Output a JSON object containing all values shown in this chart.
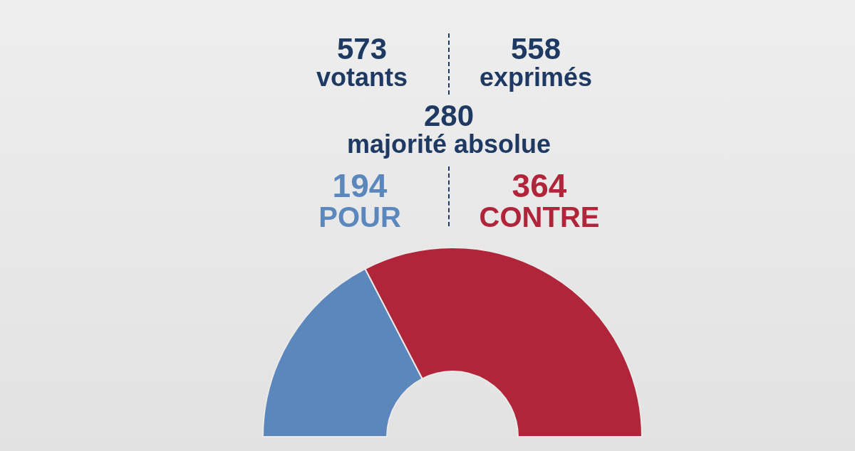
{
  "chart_data": {
    "type": "donut",
    "categories": [
      "POUR",
      "CONTRE"
    ],
    "values": [
      194,
      364
    ],
    "colors": [
      "#5b87bd",
      "#b0253a"
    ],
    "data_labels": true,
    "annotations": [
      "573\nvotants",
      "558\nexprimés",
      "280\nmajorité absolue"
    ]
  }
}
